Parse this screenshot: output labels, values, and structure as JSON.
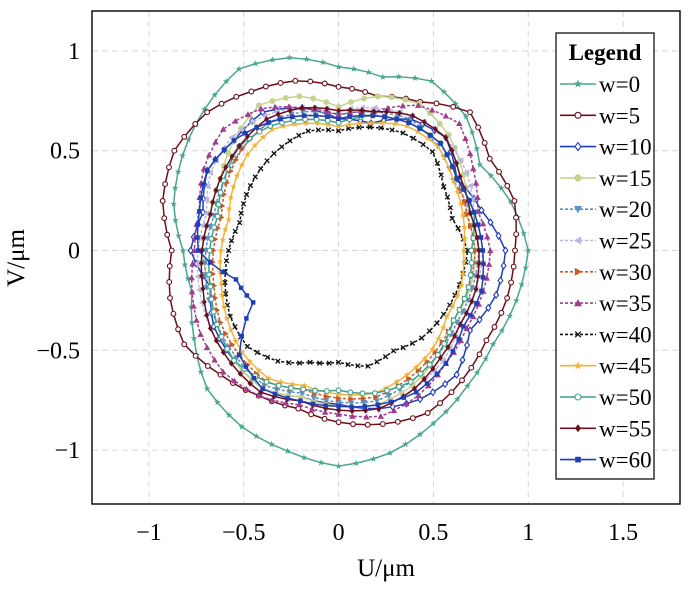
{
  "chart_data": {
    "type": "line",
    "title": "",
    "xlabel": "U/μm",
    "ylabel": "V/μm",
    "xlim": [
      -1.3,
      1.8
    ],
    "ylim": [
      -1.27,
      1.2
    ],
    "xticks": [
      -1,
      -0.5,
      0,
      0.5,
      1,
      1.5
    ],
    "yticks": [
      -1,
      -0.5,
      0,
      0.5,
      1
    ],
    "xtick_labels": [
      "−1",
      "−0.5",
      "0",
      "0.5",
      "1",
      "1.5"
    ],
    "ytick_labels": [
      "−1",
      "−0.5",
      "0",
      "0.5",
      "1"
    ],
    "grid": true,
    "legend": {
      "title": "Legend",
      "placement": "right"
    },
    "series_shape": "closed near-circular loop; each series gives radius (μm) at polar angles 0,15,...,345 degrees, measured counter-clockwise from +U axis",
    "angles_deg": [
      0,
      15,
      30,
      45,
      60,
      75,
      90,
      105,
      120,
      135,
      150,
      165,
      180,
      195,
      210,
      225,
      240,
      255,
      270,
      285,
      300,
      315,
      330,
      345
    ],
    "series": [
      {
        "name": "w=0",
        "color": "#4aa68f",
        "marker": "star",
        "dashed": false,
        "radii": [
          1.0,
          0.94,
          0.86,
          0.95,
          0.98,
          0.9,
          0.92,
          1.0,
          1.05,
          1.0,
          0.95,
          0.9,
          0.82,
          0.8,
          0.88,
          0.98,
          1.02,
          1.04,
          1.08,
          1.05,
          1.0,
          0.96,
          0.94,
          0.97
        ]
      },
      {
        "name": "w=5",
        "color": "#6b0f1a",
        "marker": "circle-open",
        "dashed": false,
        "radii": [
          0.93,
          0.96,
          0.92,
          0.98,
          0.86,
          0.8,
          0.82,
          0.88,
          0.92,
          0.98,
          1.0,
          0.96,
          0.88,
          0.92,
          0.94,
          0.88,
          0.84,
          0.82,
          0.86,
          0.9,
          0.94,
          0.92,
          0.9,
          0.92
        ]
      },
      {
        "name": "w=10",
        "color": "#1f3fb8",
        "marker": "diamond-open",
        "dashed": false,
        "radii": [
          0.88,
          0.78,
          0.72,
          0.8,
          0.76,
          0.66,
          0.66,
          0.74,
          0.8,
          0.78,
          0.8,
          0.74,
          0.78,
          0.7,
          0.76,
          0.78,
          0.8,
          0.76,
          0.77,
          0.82,
          0.86,
          0.88,
          0.8,
          0.86
        ]
      },
      {
        "name": "w=15",
        "color": "#c5d38e",
        "marker": "circle",
        "dashed": false,
        "radii": [
          0.72,
          0.7,
          0.76,
          0.82,
          0.85,
          0.8,
          0.72,
          0.8,
          0.84,
          0.78,
          0.72,
          0.7,
          0.72,
          0.7,
          0.74,
          0.78,
          0.8,
          0.76,
          0.78,
          0.8,
          0.78,
          0.74,
          0.7,
          0.72
        ]
      },
      {
        "name": "w=20",
        "color": "#5a8fc8",
        "marker": "triangle-down",
        "dashed": true,
        "radii": [
          0.74,
          0.72,
          0.7,
          0.74,
          0.76,
          0.72,
          0.68,
          0.72,
          0.74,
          0.72,
          0.7,
          0.68,
          0.7,
          0.72,
          0.74,
          0.76,
          0.78,
          0.74,
          0.76,
          0.78,
          0.76,
          0.74,
          0.72,
          0.73
        ]
      },
      {
        "name": "w=25",
        "color": "#b8b8dc",
        "marker": "triangle-left",
        "dashed": true,
        "radii": [
          0.76,
          0.74,
          0.78,
          0.8,
          0.78,
          0.74,
          0.7,
          0.74,
          0.78,
          0.8,
          0.78,
          0.72,
          0.74,
          0.76,
          0.78,
          0.8,
          0.82,
          0.78,
          0.8,
          0.82,
          0.8,
          0.78,
          0.74,
          0.75
        ]
      },
      {
        "name": "w=30",
        "color": "#c85a28",
        "marker": "triangle-right",
        "dashed": true,
        "radii": [
          0.72,
          0.7,
          0.72,
          0.76,
          0.74,
          0.7,
          0.66,
          0.7,
          0.74,
          0.72,
          0.68,
          0.64,
          0.66,
          0.68,
          0.72,
          0.74,
          0.76,
          0.72,
          0.74,
          0.76,
          0.74,
          0.72,
          0.7,
          0.71
        ]
      },
      {
        "name": "w=35",
        "color": "#a03c8c",
        "marker": "triangle",
        "dashed": true,
        "radii": [
          0.8,
          0.76,
          0.82,
          0.9,
          0.84,
          0.72,
          0.68,
          0.74,
          0.82,
          0.86,
          0.82,
          0.76,
          0.76,
          0.8,
          0.84,
          0.86,
          0.84,
          0.8,
          0.82,
          0.86,
          0.84,
          0.8,
          0.78,
          0.79
        ]
      },
      {
        "name": "w=40",
        "color": "#111111",
        "marker": "cross",
        "dashed": true,
        "radii": [
          0.68,
          0.62,
          0.64,
          0.7,
          0.68,
          0.64,
          0.6,
          0.62,
          0.6,
          0.58,
          0.56,
          0.54,
          0.58,
          0.62,
          0.66,
          0.68,
          0.64,
          0.58,
          0.56,
          0.6,
          0.58,
          0.62,
          0.64,
          0.66
        ]
      },
      {
        "name": "w=45",
        "color": "#f0b43c",
        "marker": "star",
        "dashed": false,
        "radii": [
          0.66,
          0.68,
          0.7,
          0.74,
          0.72,
          0.66,
          0.62,
          0.66,
          0.7,
          0.68,
          0.64,
          0.6,
          0.62,
          0.64,
          0.68,
          0.72,
          0.74,
          0.7,
          0.72,
          0.74,
          0.72,
          0.7,
          0.66,
          0.67
        ]
      },
      {
        "name": "w=50",
        "color": "#3ca08c",
        "marker": "circle-open",
        "dashed": false,
        "radii": [
          0.7,
          0.74,
          0.72,
          0.76,
          0.74,
          0.7,
          0.64,
          0.68,
          0.72,
          0.74,
          0.7,
          0.66,
          0.68,
          0.7,
          0.74,
          0.78,
          0.76,
          0.72,
          0.7,
          0.74,
          0.76,
          0.74,
          0.7,
          0.71
        ]
      },
      {
        "name": "w=55",
        "color": "#6b0f1a",
        "marker": "diamond",
        "dashed": false,
        "radii": [
          0.74,
          0.72,
          0.74,
          0.8,
          0.78,
          0.72,
          0.7,
          0.74,
          0.76,
          0.74,
          0.72,
          0.7,
          0.72,
          0.74,
          0.78,
          0.8,
          0.82,
          0.78,
          0.8,
          0.82,
          0.8,
          0.76,
          0.74,
          0.75
        ]
      },
      {
        "name": "w=60",
        "color": "#1f3fb8",
        "marker": "square",
        "dashed": false,
        "radii": [
          0.76,
          0.74,
          0.72,
          0.76,
          0.74,
          0.7,
          0.66,
          0.7,
          0.74,
          0.78,
          0.8,
          0.76,
          0.74,
          0.56,
          0.52,
          0.74,
          0.8,
          0.78,
          0.78,
          0.8,
          0.82,
          0.8,
          0.76,
          0.78
        ]
      }
    ]
  }
}
